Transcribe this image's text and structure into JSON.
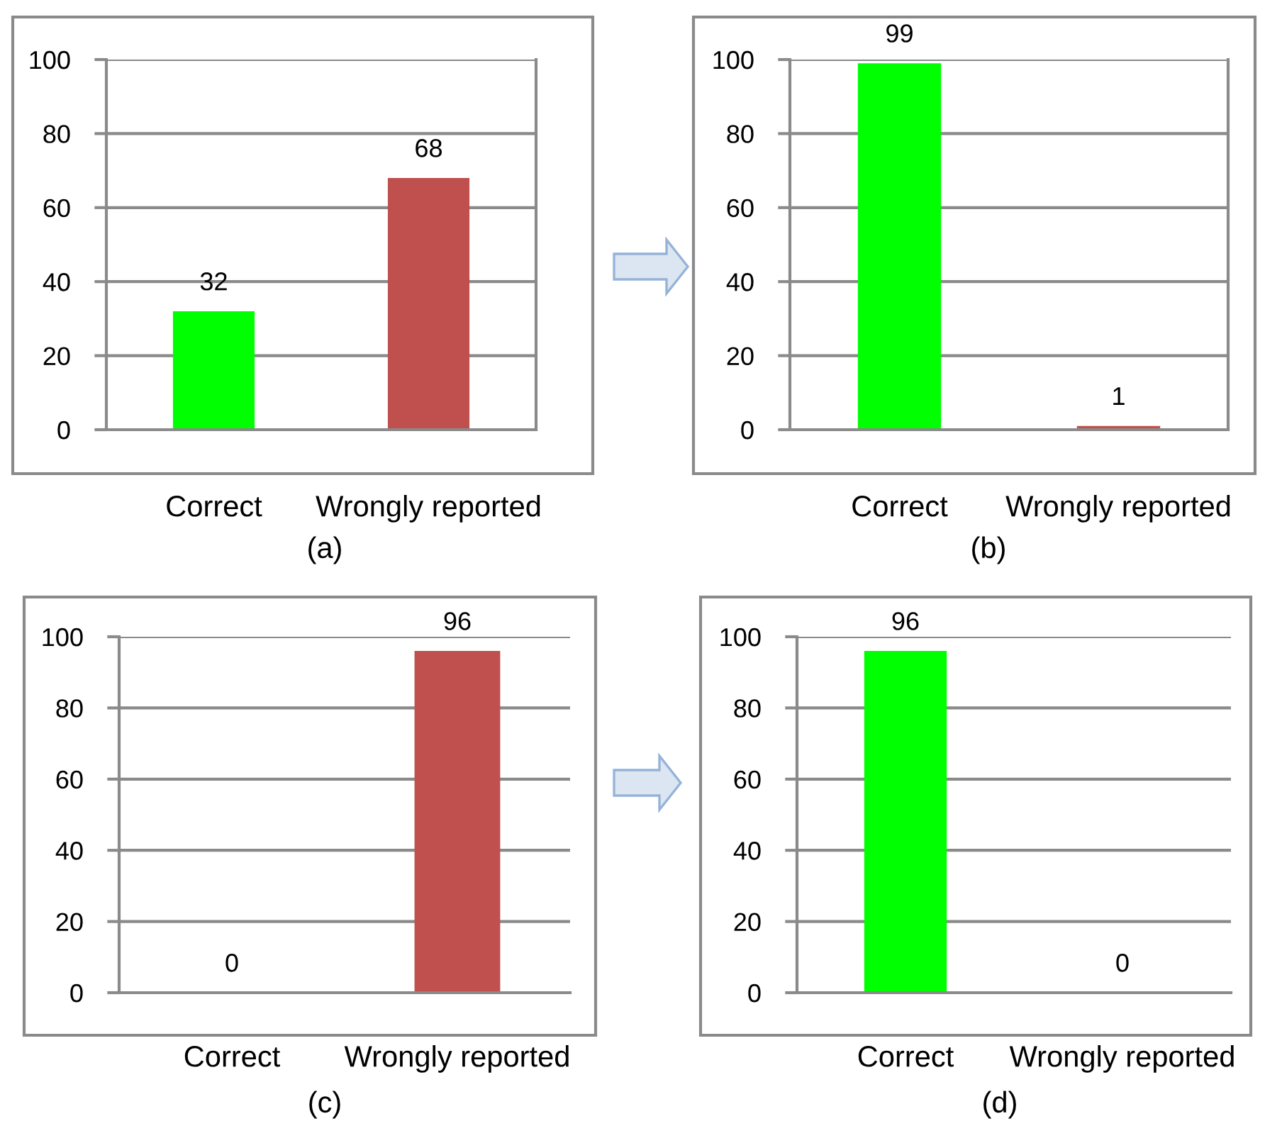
{
  "chart_data": [
    {
      "type": "bar",
      "categories": [
        "Correct",
        "Wrongly reported"
      ],
      "values": [
        32,
        68
      ],
      "colors": [
        "#00ff00",
        "#c0504d"
      ],
      "ylim": [
        0,
        100
      ],
      "yticks": [
        0,
        20,
        40,
        60,
        80,
        100
      ],
      "grid": "y",
      "data_labels": true,
      "annotations": [
        "(a)"
      ]
    },
    {
      "type": "bar",
      "categories": [
        "Correct",
        "Wrongly reported"
      ],
      "values": [
        99,
        1
      ],
      "colors": [
        "#00ff00",
        "#c0504d"
      ],
      "ylim": [
        0,
        100
      ],
      "yticks": [
        0,
        20,
        40,
        60,
        80,
        100
      ],
      "grid": "y",
      "data_labels": true,
      "annotations": [
        "(b)"
      ]
    },
    {
      "type": "bar",
      "categories": [
        "Correct",
        "Wrongly reported"
      ],
      "values": [
        0,
        96
      ],
      "colors": [
        "#00ff00",
        "#c0504d"
      ],
      "ylim": [
        0,
        100
      ],
      "yticks": [
        0,
        20,
        40,
        60,
        80,
        100
      ],
      "grid": "y",
      "data_labels": true,
      "annotations": [
        "(c)"
      ]
    },
    {
      "type": "bar",
      "categories": [
        "Correct",
        "Wrongly reported"
      ],
      "values": [
        96,
        0
      ],
      "colors": [
        "#00ff00",
        "#c0504d"
      ],
      "ylim": [
        0,
        100
      ],
      "yticks": [
        0,
        20,
        40,
        60,
        80,
        100
      ],
      "grid": "y",
      "data_labels": true,
      "annotations": [
        "(d)"
      ]
    }
  ]
}
